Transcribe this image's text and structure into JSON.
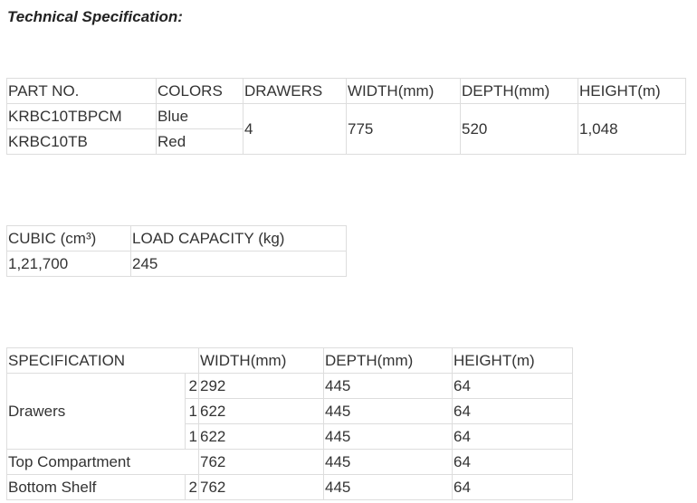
{
  "title": "Technical Specification:",
  "table1": {
    "headers": [
      "PART NO.",
      "COLORS",
      "DRAWERS",
      "WIDTH(mm)",
      "DEPTH(mm)",
      "HEIGHT(m)"
    ],
    "rows": [
      {
        "part": "KRBC10TBPCM",
        "color": "Blue"
      },
      {
        "part": "KRBC10TB",
        "color": "Red"
      }
    ],
    "drawers": "4",
    "width": "775",
    "depth": "520",
    "height": "1,048"
  },
  "table2": {
    "headers": [
      "CUBIC (cm³)",
      "LOAD CAPACITY (kg)"
    ],
    "values": [
      "1,21,700",
      "245"
    ]
  },
  "table3": {
    "headers": [
      "SPECIFICATION",
      "WIDTH(mm)",
      "DEPTH(mm)",
      "HEIGHT(m)"
    ],
    "drawers_label": "Drawers",
    "drawer_rows": [
      {
        "qty": "2",
        "width": "292",
        "depth": "445",
        "height": "64"
      },
      {
        "qty": "1",
        "width": "622",
        "depth": "445",
        "height": "64"
      },
      {
        "qty": "1",
        "width": "622",
        "depth": "445",
        "height": "64"
      }
    ],
    "top": {
      "label": "Top Compartment",
      "width": "762",
      "depth": "445",
      "height": "64"
    },
    "bottom": {
      "label": "Bottom Shelf",
      "qty": "2",
      "width": "762",
      "depth": "445",
      "height": "64"
    }
  }
}
